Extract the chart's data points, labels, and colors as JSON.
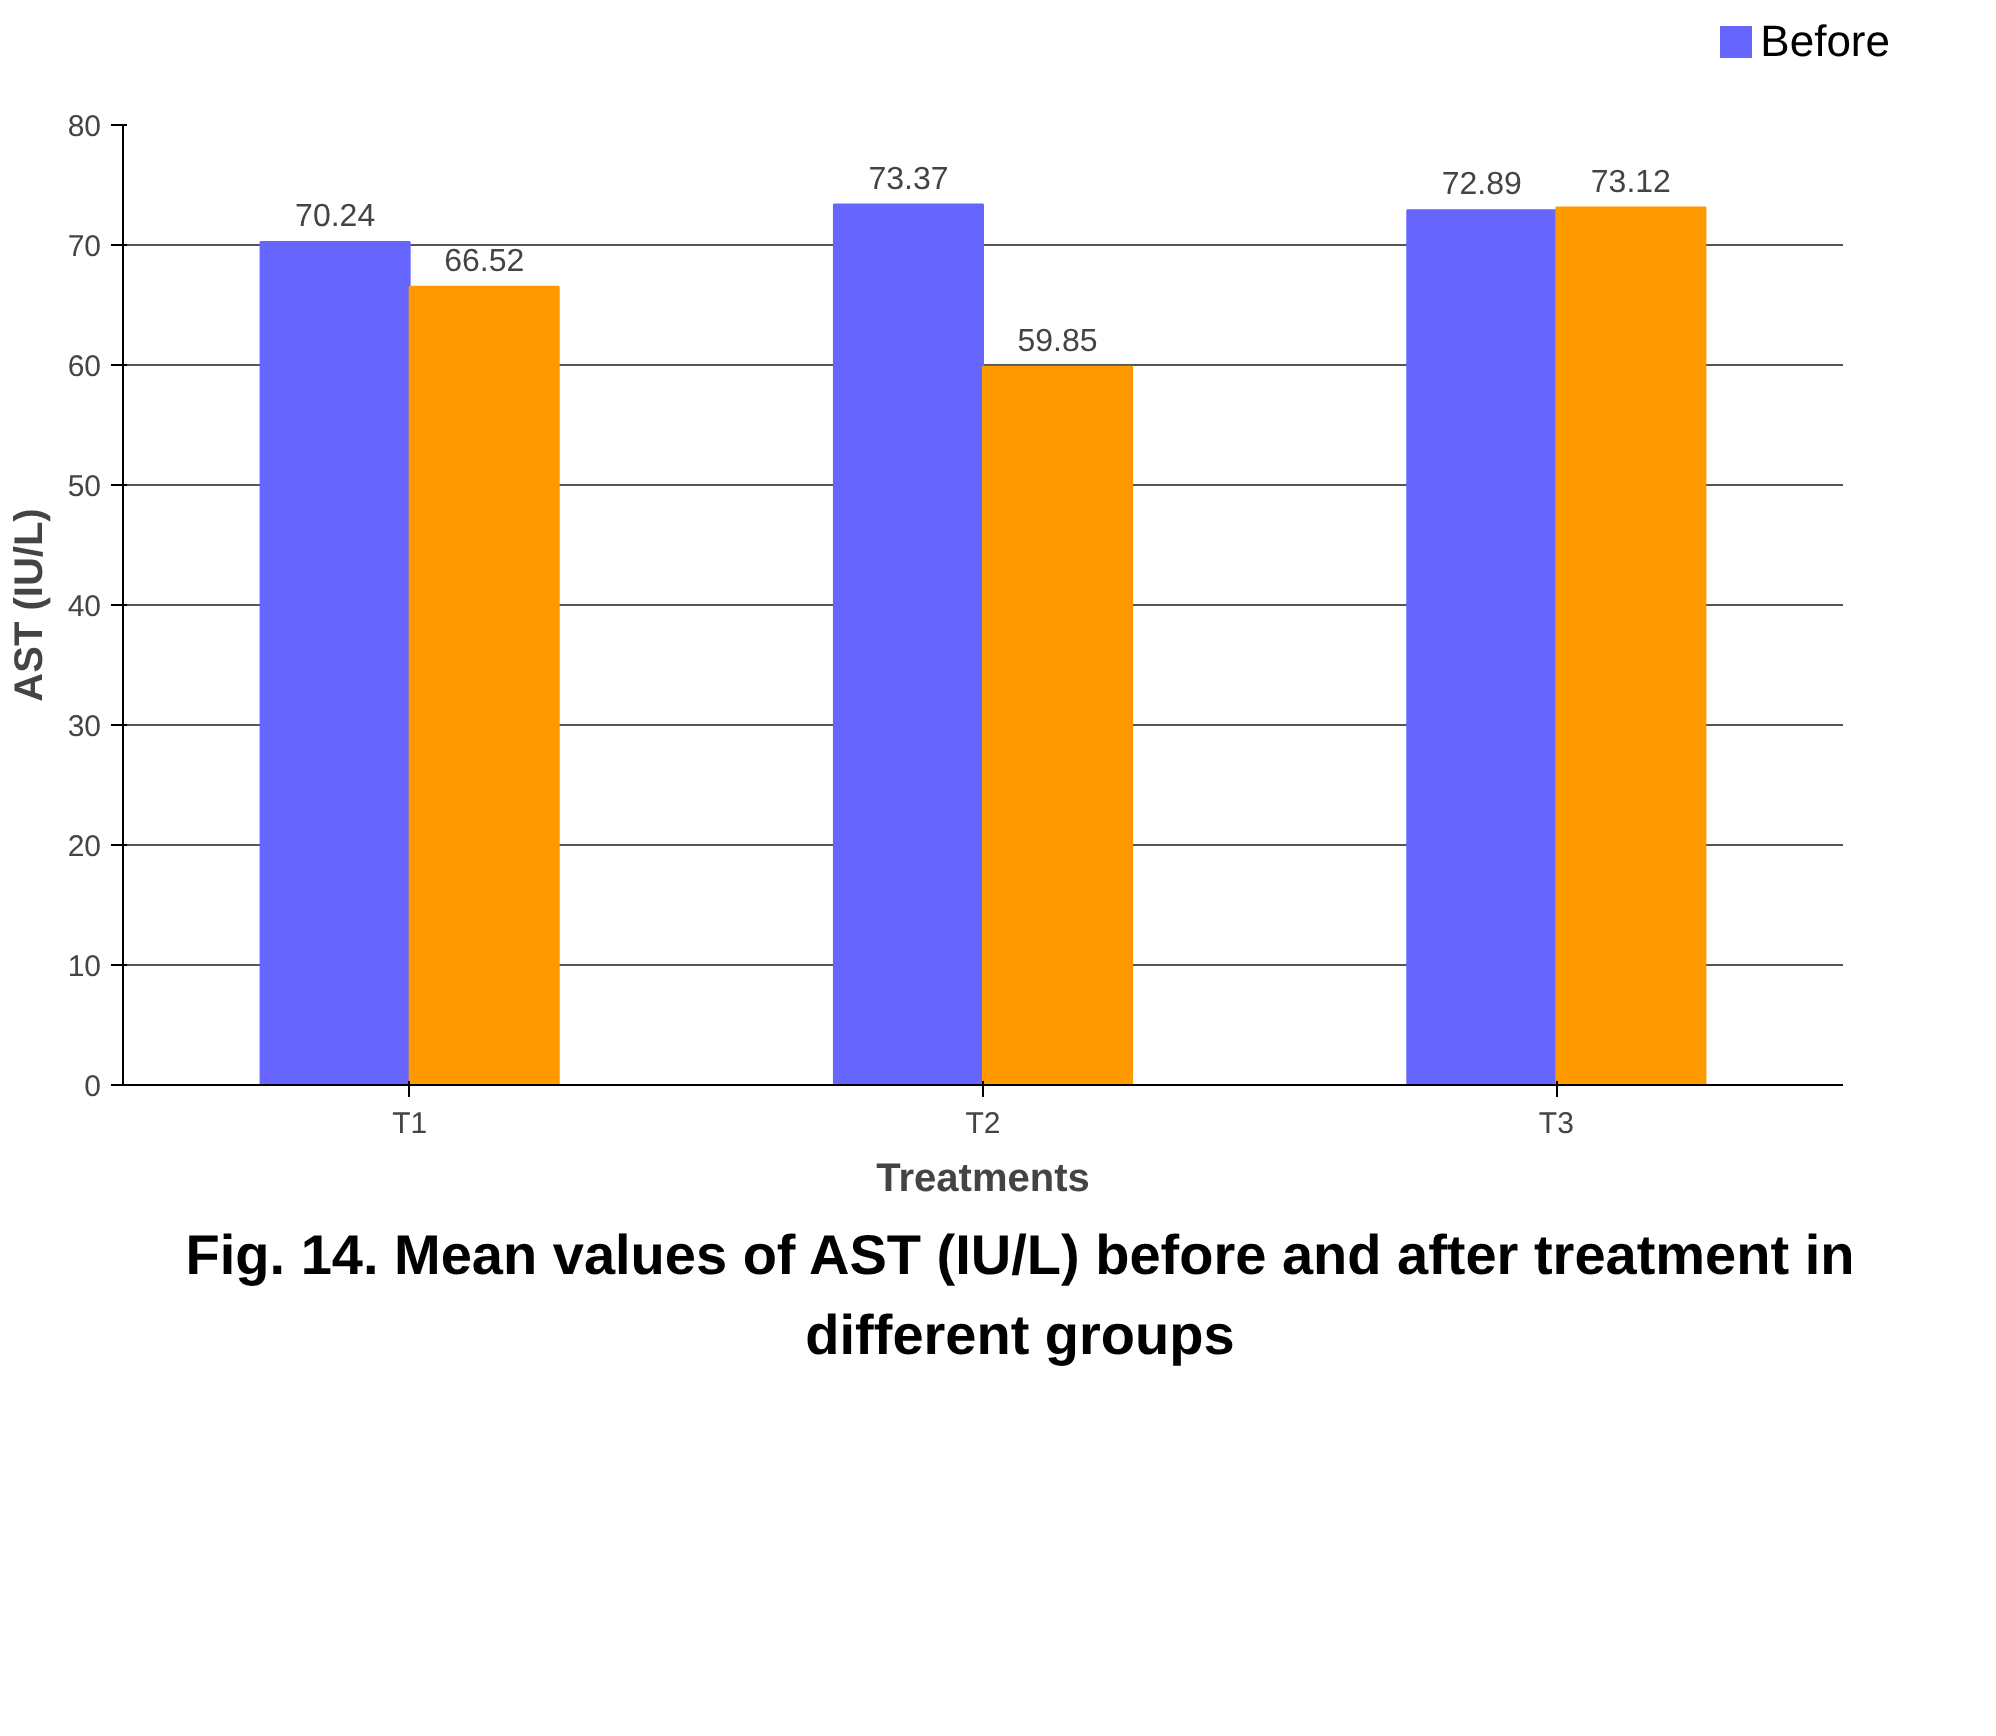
{
  "chart_data": {
    "type": "bar",
    "title": "Fig. 14.  Mean values of AST (IU/L) before and after treatment in different groups",
    "xlabel": "Treatments",
    "ylabel": "AST (IU/L)",
    "categories": [
      "T1",
      "T2",
      "T3"
    ],
    "series": [
      {
        "name": "Before",
        "color": "#6666ff",
        "values": [
          70.24,
          73.37,
          72.89
        ]
      },
      {
        "color": "#ff9900",
        "values": [
          66.52,
          59.85,
          73.12
        ]
      }
    ],
    "ylim": [
      0,
      80
    ],
    "yticks": [
      0,
      10,
      20,
      30,
      40,
      50,
      60,
      70,
      80
    ],
    "grid": "y",
    "legend": "top right",
    "data_labels": true
  }
}
